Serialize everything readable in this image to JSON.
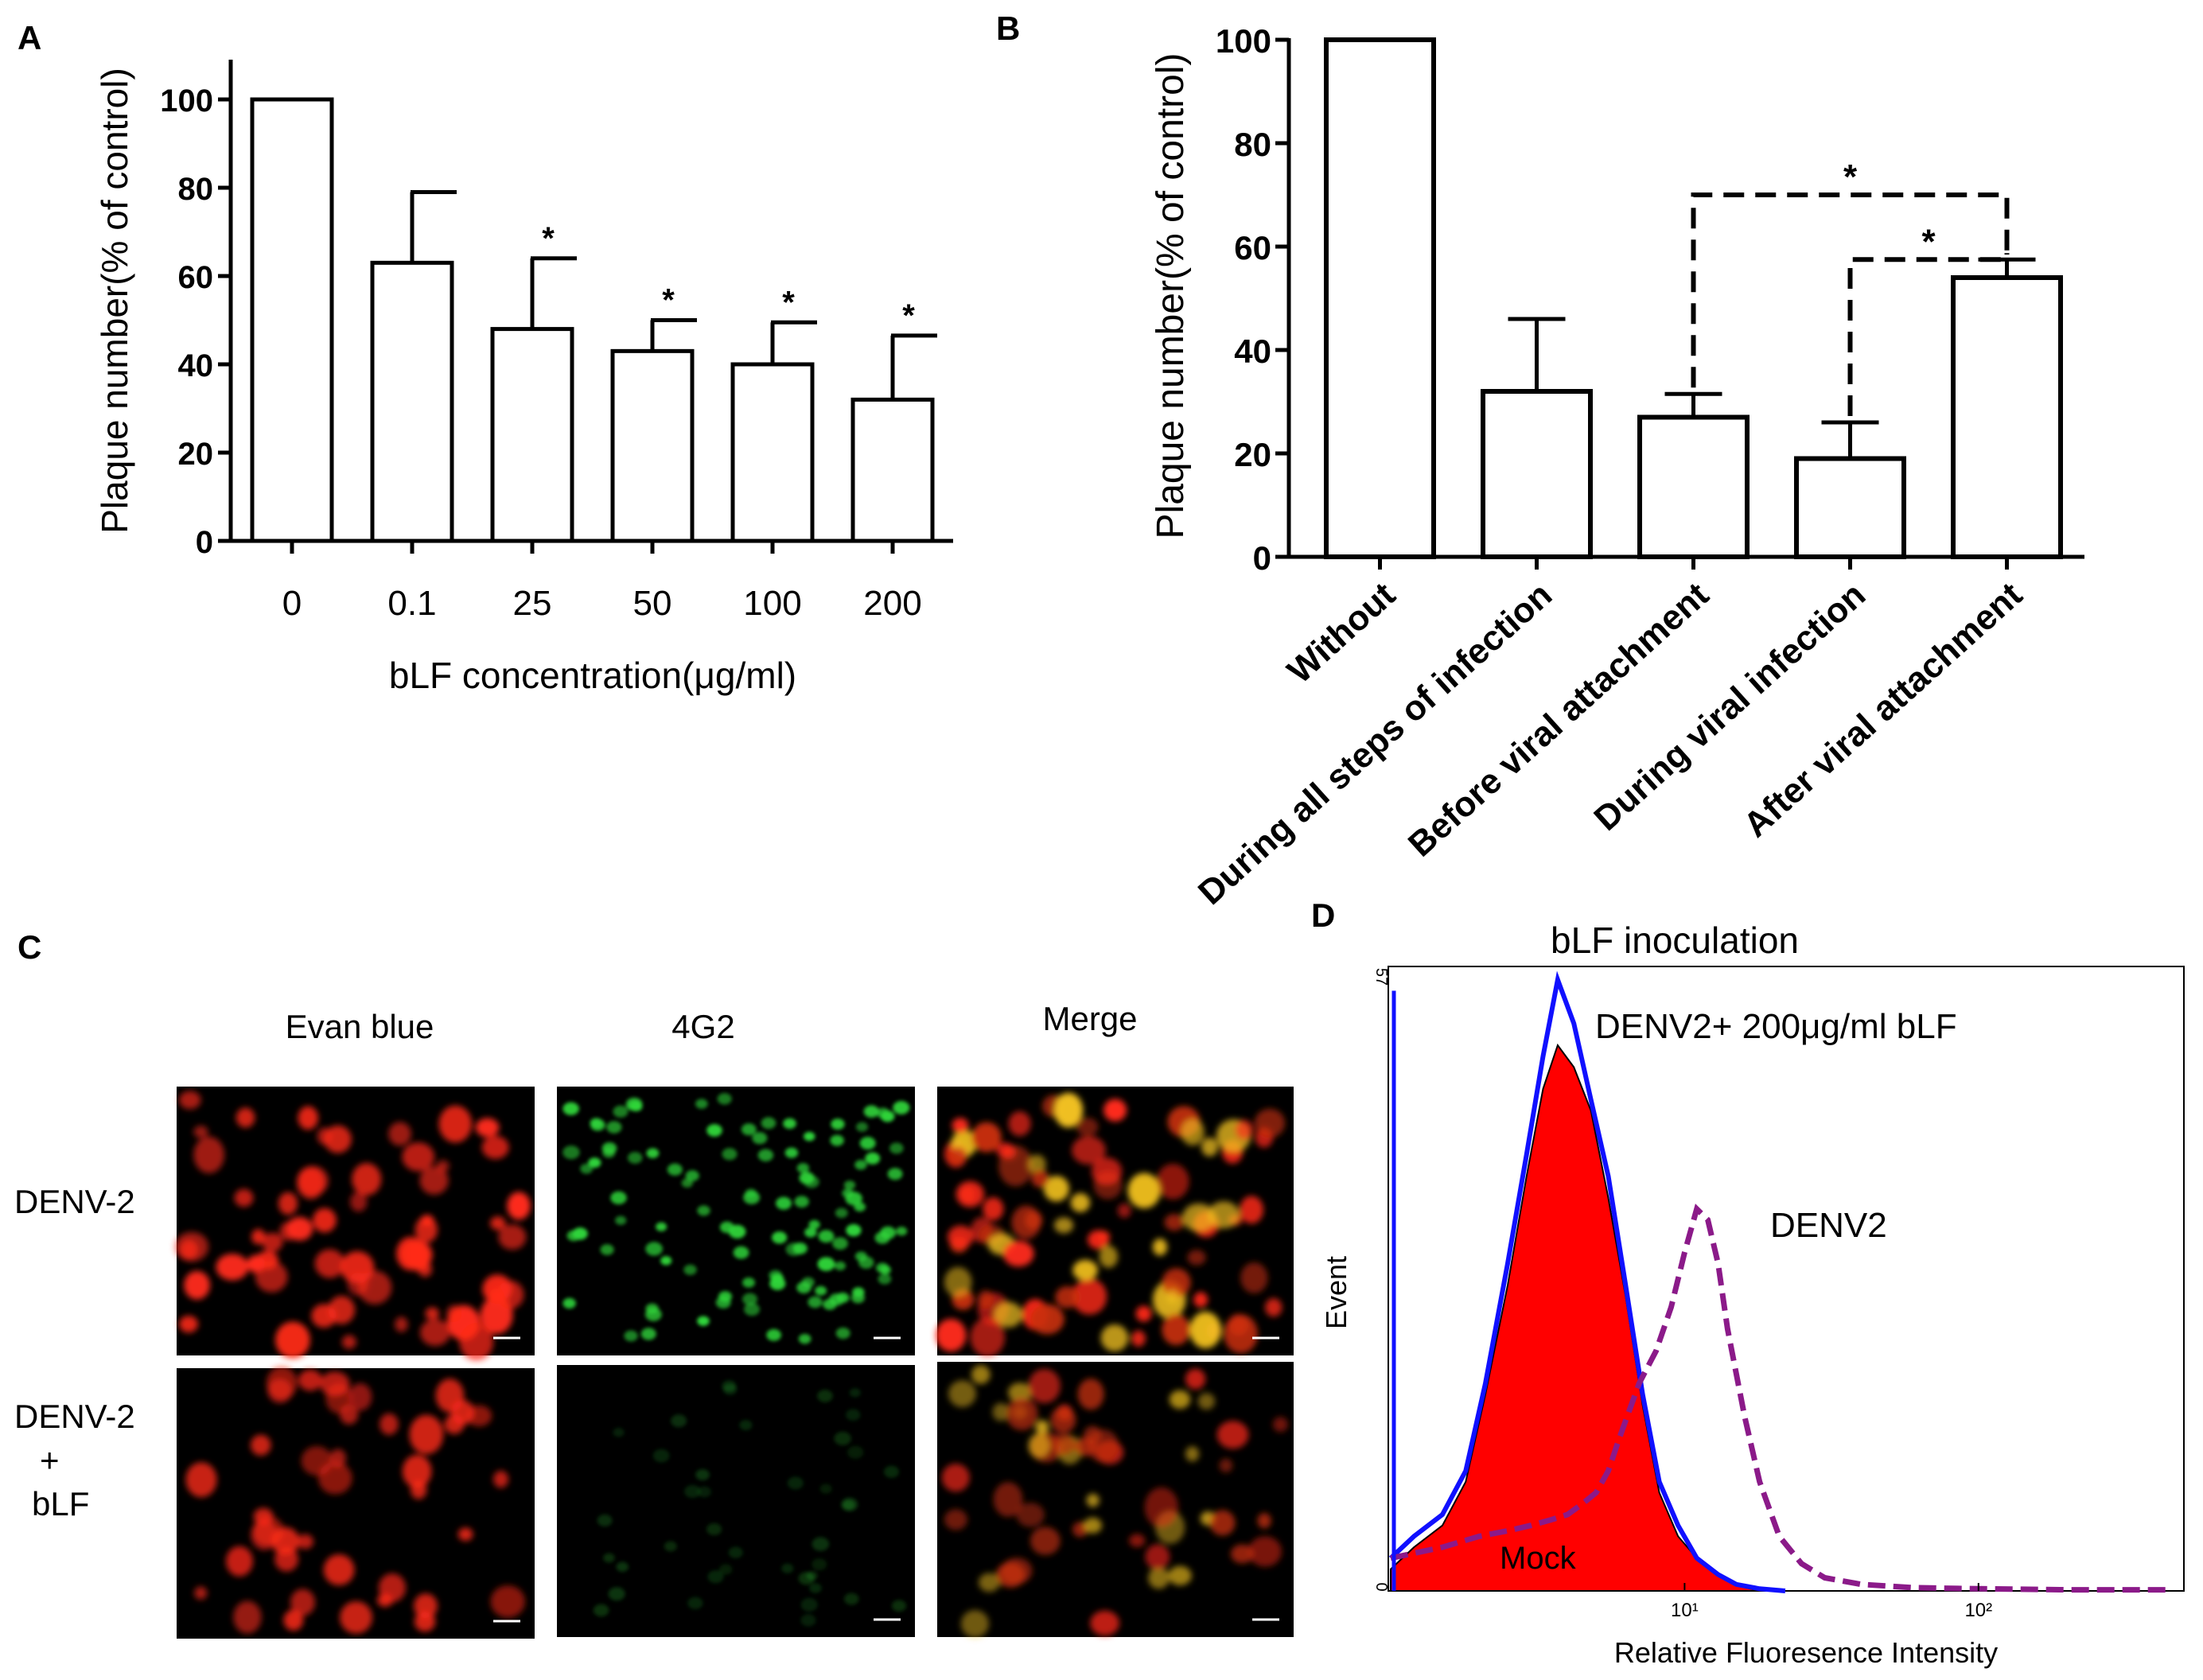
{
  "panel_labels": {
    "a": "A",
    "b": "B",
    "c": "C",
    "d": "D"
  },
  "chart_data": [
    {
      "panel": "A",
      "type": "bar",
      "title": "",
      "ylabel": "Plaque number(% of control)",
      "xlabel": "bLF concentration(μg/ml)",
      "ylim": [
        0,
        110
      ],
      "yticks": [
        "0",
        "20",
        "40",
        "60",
        "80",
        "100"
      ],
      "categories": [
        "0",
        "0.1",
        "25",
        "50",
        "100",
        "200"
      ],
      "values": [
        100,
        63,
        48,
        43,
        40,
        32
      ],
      "errors": [
        0,
        16,
        16,
        7,
        9.5,
        14.5
      ],
      "significance": [
        "",
        "",
        "*",
        "*",
        "*",
        "*"
      ]
    },
    {
      "panel": "B",
      "type": "bar",
      "title": "",
      "ylabel": "Plaque number(% of control)",
      "xlabel": "",
      "ylim": [
        0,
        100
      ],
      "yticks": [
        "0",
        "20",
        "40",
        "60",
        "80",
        "100"
      ],
      "categories": [
        "Without",
        "During all steps of infection",
        "Before viral attachment",
        "During viral infection",
        "After viral attachment"
      ],
      "values": [
        100,
        32,
        27,
        19,
        54
      ],
      "errors": [
        0,
        14,
        4.5,
        7,
        3.5
      ],
      "comparisons": [
        {
          "from": "Before viral attachment",
          "to": "After viral attachment",
          "label": "*"
        },
        {
          "from": "During viral infection",
          "to": "After viral attachment",
          "label": "*"
        }
      ]
    },
    {
      "panel": "D",
      "type": "line",
      "title": "bLF inoculation",
      "xlabel": "Relative Fluoresence Intensity",
      "ylabel": "Event",
      "ylim": [
        0,
        57
      ],
      "ytick_labels": [
        "0",
        "57"
      ],
      "xscale": "log",
      "xlim": [
        1,
        500
      ],
      "xtick_labels": [
        "10¹",
        "10²"
      ],
      "series": [
        {
          "name": "Mock",
          "color": "#ff0000",
          "style": "filled",
          "x": [
            1,
            1.2,
            1.5,
            1.8,
            2.1,
            2.5,
            2.9,
            3.3,
            3.7,
            4.2,
            4.8,
            5.5,
            6.3,
            7.2,
            8.2,
            9.5,
            11,
            13,
            15,
            18
          ],
          "y": [
            2,
            4,
            6,
            10,
            18,
            28,
            38,
            46,
            50,
            48,
            44,
            36,
            27,
            17,
            9,
            5,
            3,
            1.5,
            0.5,
            0
          ]
        },
        {
          "name": "DENV2+ 200μg/ml bLF",
          "color": "#1010ff",
          "style": "solid",
          "x": [
            1,
            1.2,
            1.5,
            1.8,
            2.1,
            2.5,
            2.9,
            3.3,
            3.7,
            4.2,
            4.8,
            5.5,
            6.3,
            7.2,
            8.2,
            9.5,
            11,
            13,
            15,
            18,
            22
          ],
          "y": [
            3,
            5,
            7,
            11,
            19,
            30,
            40,
            49,
            56,
            52,
            45,
            38,
            28,
            18,
            10,
            6,
            3,
            1.5,
            0.6,
            0.2,
            0
          ]
        },
        {
          "name": "DENV2",
          "color": "#8b1a89",
          "style": "dashed",
          "x": [
            1,
            1.5,
            2,
            2.5,
            3,
            3.5,
            4,
            4.5,
            5,
            5.5,
            6,
            7,
            8,
            9,
            10,
            11,
            12,
            13,
            14,
            16,
            18,
            21,
            25,
            30,
            40,
            60,
            100,
            200,
            450
          ],
          "y": [
            3,
            4,
            5,
            5.5,
            6,
            6.5,
            7,
            8,
            9,
            11,
            14,
            19,
            22,
            26,
            31,
            35,
            34,
            30,
            24,
            16,
            10,
            5,
            2.5,
            1.2,
            0.6,
            0.3,
            0.2,
            0.1,
            0.1
          ]
        }
      ]
    }
  ],
  "panel_c": {
    "columns": [
      "Evan blue",
      "4G2",
      "Merge"
    ],
    "rows": [
      {
        "name": "DENV-2",
        "lines": [
          "DENV-2"
        ]
      },
      {
        "name": "DENV-2 + bLF",
        "lines": [
          "DENV-2",
          "+",
          "bLF"
        ]
      }
    ]
  },
  "colors": {
    "red_cells": "#ff2a1a",
    "green_cells": "#2fd43a",
    "bg": "#000000"
  }
}
